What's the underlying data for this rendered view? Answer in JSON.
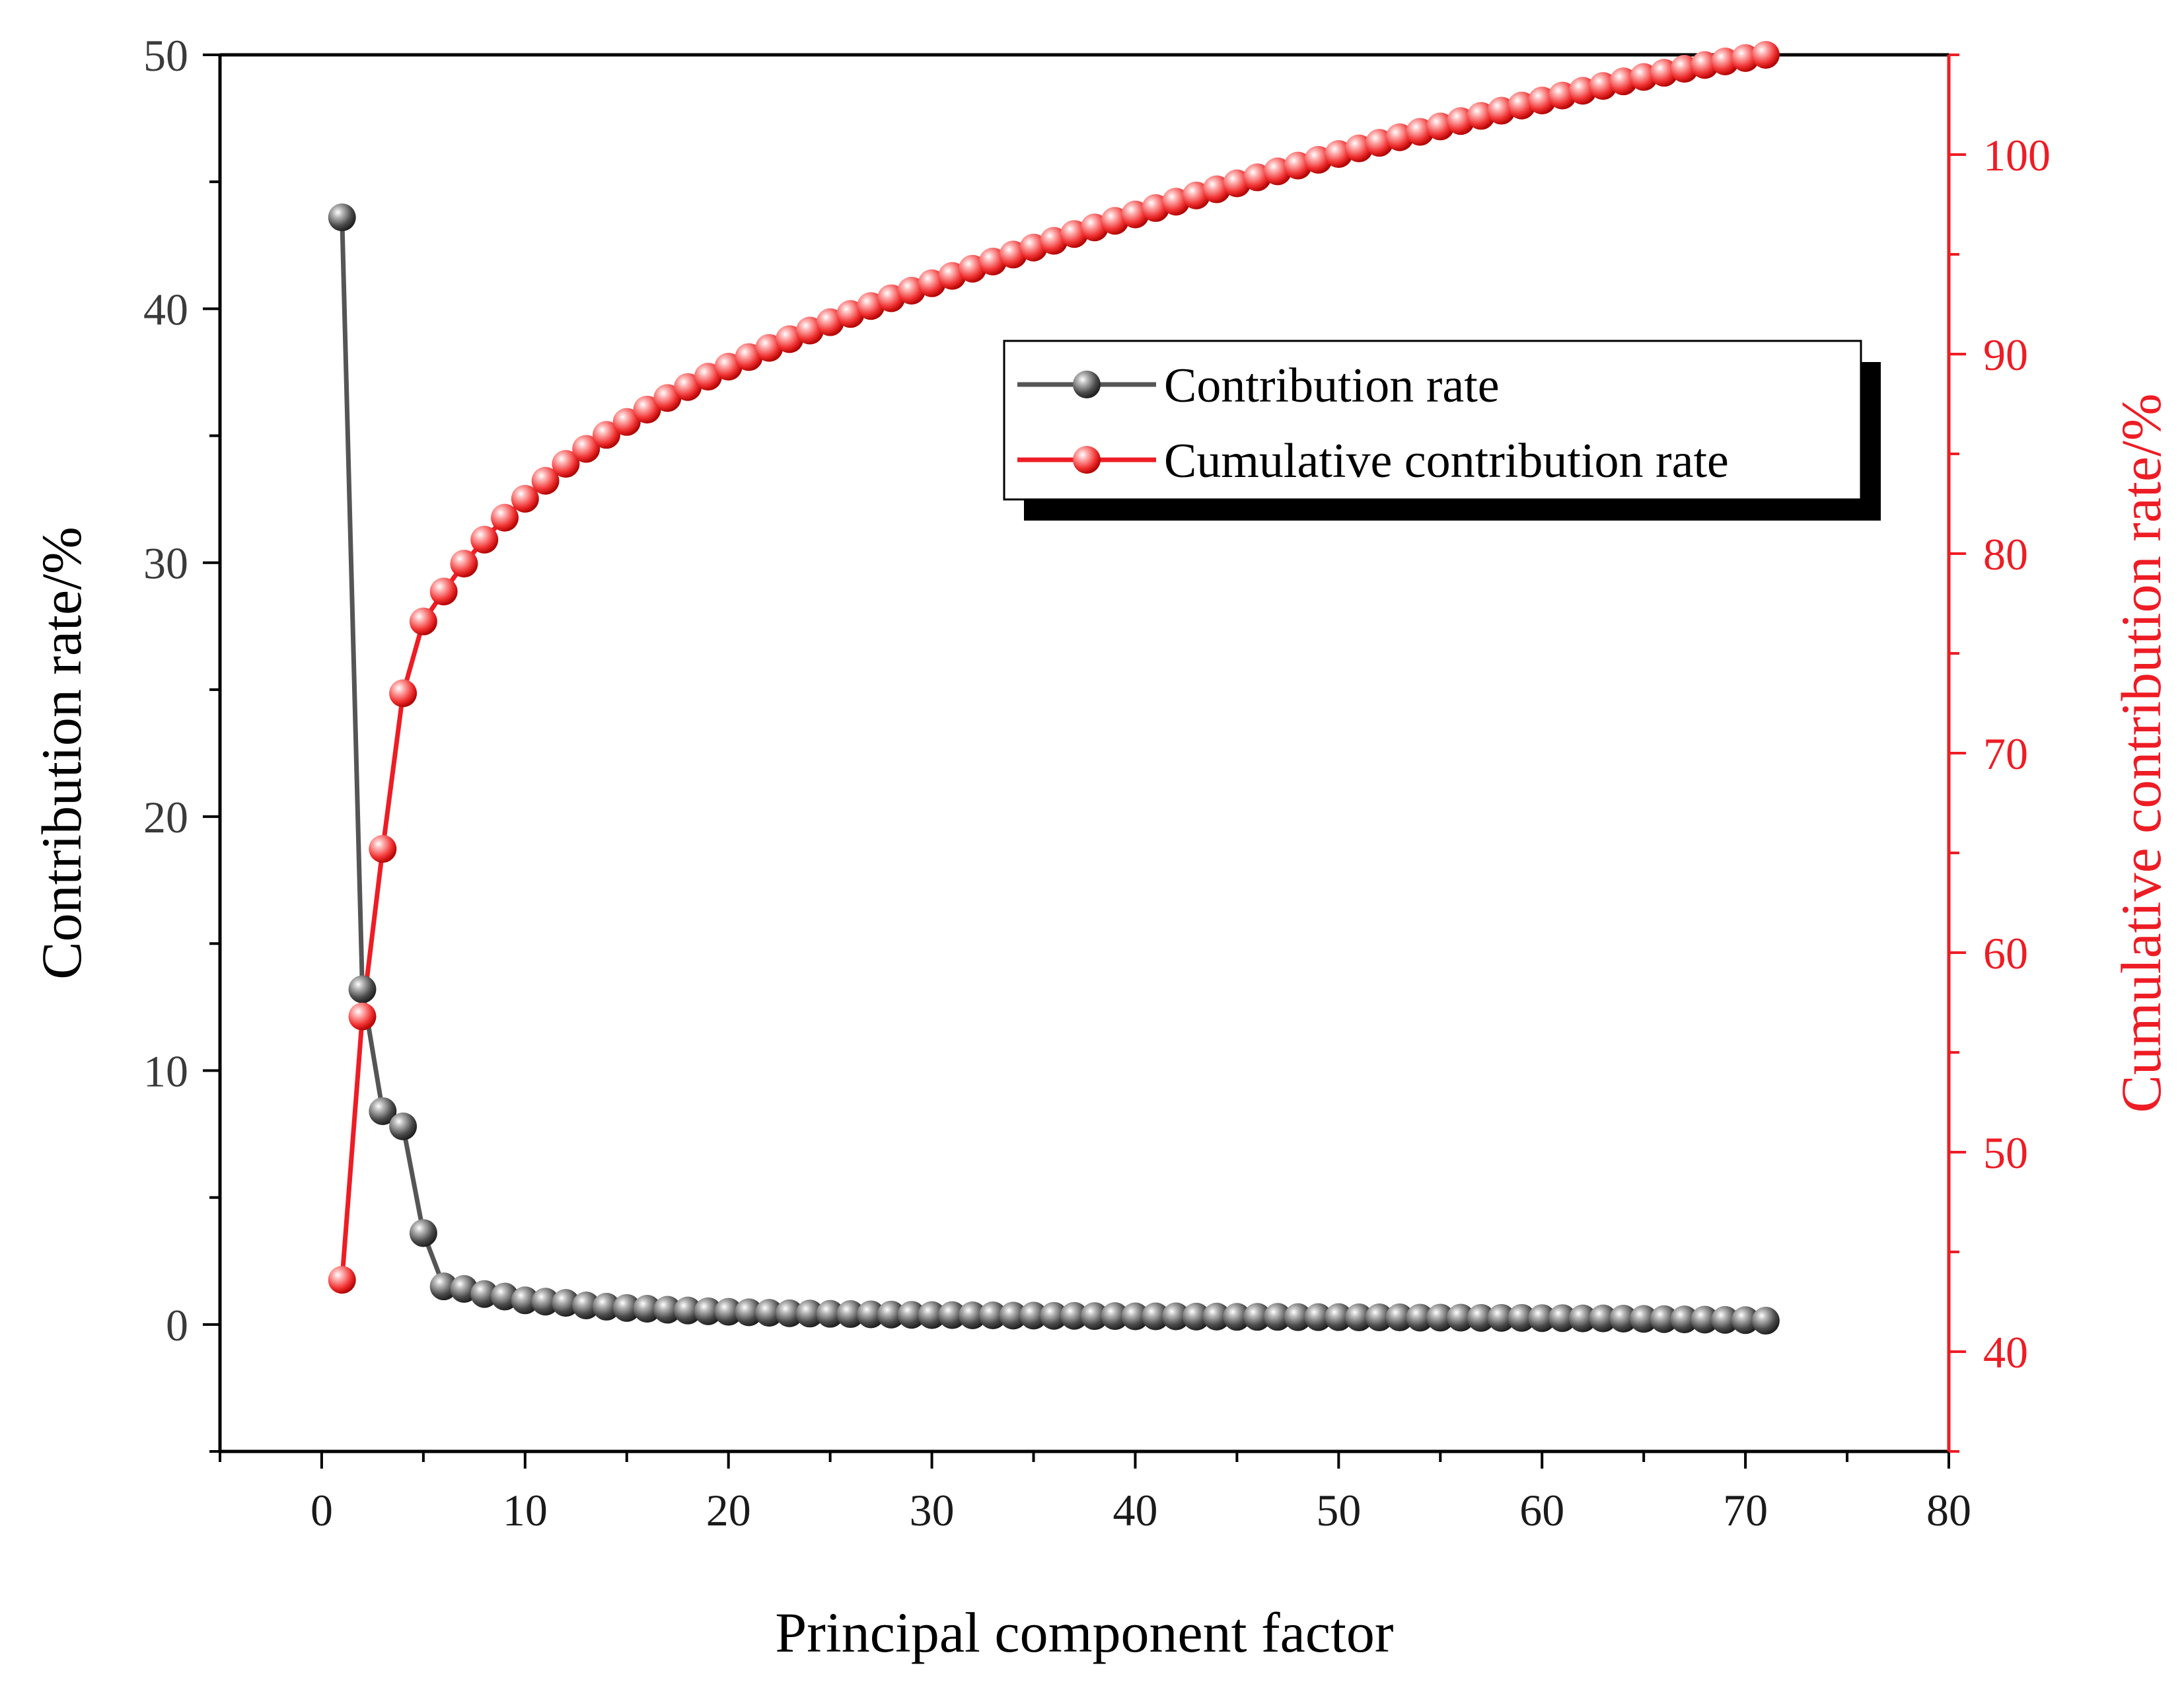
{
  "chart_data": {
    "type": "line",
    "title": "",
    "xlabel": "Principal component factor",
    "ylabel": "Contribution rate/%",
    "y2label": "Cumulative contribution rate/%",
    "xlim": [
      -5,
      80
    ],
    "ylim": [
      -5,
      50
    ],
    "y2lim": [
      35,
      105
    ],
    "x_ticks": [
      0,
      10,
      20,
      30,
      40,
      50,
      60,
      70,
      80
    ],
    "y_ticks": [
      0,
      10,
      20,
      30,
      40,
      50
    ],
    "y2_ticks": [
      40,
      50,
      60,
      70,
      80,
      90,
      100
    ],
    "legend_position": "top-right",
    "series": [
      {
        "name": "Contribution rate",
        "axis": "left",
        "color": "#555555",
        "x": [
          1,
          2,
          3,
          4,
          5,
          6,
          7,
          8,
          9,
          10,
          11,
          12,
          13,
          14,
          15,
          16,
          17,
          18,
          19,
          20,
          21,
          22,
          23,
          24,
          25,
          26,
          27,
          28,
          29,
          30,
          31,
          32,
          33,
          34,
          35,
          36,
          37,
          38,
          39,
          40,
          41,
          42,
          43,
          44,
          45,
          46,
          47,
          48,
          49,
          50,
          51,
          52,
          53,
          54,
          55,
          56,
          57,
          58,
          59,
          60,
          61,
          62,
          63,
          64,
          65,
          66,
          67,
          68,
          69,
          70,
          71
        ],
        "values": [
          43.6,
          13.2,
          8.4,
          7.8,
          3.6,
          1.5,
          1.4,
          1.2,
          1.1,
          0.95,
          0.9,
          0.85,
          0.75,
          0.7,
          0.65,
          0.62,
          0.58,
          0.55,
          0.52,
          0.5,
          0.48,
          0.46,
          0.44,
          0.43,
          0.42,
          0.41,
          0.4,
          0.39,
          0.38,
          0.37,
          0.37,
          0.36,
          0.36,
          0.35,
          0.35,
          0.34,
          0.34,
          0.33,
          0.33,
          0.32,
          0.32,
          0.32,
          0.31,
          0.31,
          0.3,
          0.3,
          0.3,
          0.29,
          0.29,
          0.29,
          0.28,
          0.28,
          0.28,
          0.27,
          0.27,
          0.27,
          0.26,
          0.26,
          0.26,
          0.25,
          0.25,
          0.24,
          0.24,
          0.23,
          0.22,
          0.21,
          0.2,
          0.19,
          0.18,
          0.17,
          0.15
        ]
      },
      {
        "name": "Cumulative contribution rate",
        "axis": "right",
        "color": "#ee1c24",
        "x": [
          1,
          2,
          3,
          4,
          5,
          6,
          7,
          8,
          9,
          10,
          11,
          12,
          13,
          14,
          15,
          16,
          17,
          18,
          19,
          20,
          21,
          22,
          23,
          24,
          25,
          26,
          27,
          28,
          29,
          30,
          31,
          32,
          33,
          34,
          35,
          36,
          37,
          38,
          39,
          40,
          41,
          42,
          43,
          44,
          45,
          46,
          47,
          48,
          49,
          50,
          51,
          52,
          53,
          54,
          55,
          56,
          57,
          58,
          59,
          60,
          61,
          62,
          63,
          64,
          65,
          66,
          67,
          68,
          69,
          70,
          71
        ],
        "values": [
          43.6,
          56.8,
          65.2,
          73.0,
          76.6,
          78.1,
          79.5,
          80.7,
          81.8,
          82.75,
          83.65,
          84.5,
          85.25,
          85.95,
          86.6,
          87.22,
          87.8,
          88.35,
          88.87,
          89.37,
          89.85,
          90.31,
          90.75,
          91.18,
          91.6,
          92.01,
          92.41,
          92.8,
          93.18,
          93.55,
          93.92,
          94.28,
          94.64,
          94.99,
          95.34,
          95.68,
          96.02,
          96.35,
          96.68,
          97.0,
          97.32,
          97.64,
          97.95,
          98.26,
          98.56,
          98.86,
          99.16,
          99.45,
          99.74,
          100.03,
          100.31,
          100.59,
          100.87,
          101.14,
          101.41,
          101.68,
          101.94,
          102.2,
          102.46,
          102.71,
          102.96,
          103.2,
          103.44,
          103.67,
          103.89,
          104.1,
          104.3,
          104.49,
          104.67,
          104.84,
          105.0
        ]
      }
    ]
  }
}
